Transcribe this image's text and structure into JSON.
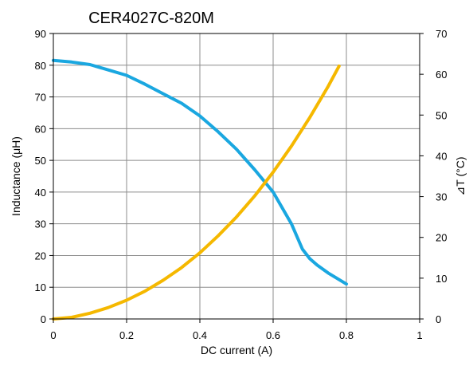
{
  "chart_data": {
    "type": "line",
    "title": "CER4027C-820M",
    "xlabel": "DC current (A)",
    "ylabel": "Inductance (μH)",
    "y2label": "⊿T (°C)",
    "xlim": [
      0,
      1
    ],
    "ylim": [
      0,
      90
    ],
    "y2lim": [
      0,
      70
    ],
    "xticks": [
      "0",
      "0.2",
      "0.4",
      "0.6",
      "0.8",
      "1"
    ],
    "yticks": [
      "0",
      "10",
      "20",
      "30",
      "40",
      "50",
      "60",
      "70",
      "80",
      "90"
    ],
    "y2ticks": [
      "0",
      "10",
      "20",
      "30",
      "40",
      "50",
      "60",
      "70"
    ],
    "grid": true,
    "series": [
      {
        "axis": "left",
        "color": "#1aa7e0",
        "x": [
          0,
          0.05,
          0.1,
          0.15,
          0.2,
          0.25,
          0.3,
          0.35,
          0.4,
          0.45,
          0.5,
          0.55,
          0.6,
          0.65,
          0.68,
          0.7,
          0.72,
          0.75,
          0.8
        ],
        "y": [
          81.5,
          81,
          80.2,
          78.5,
          76.8,
          74,
          71,
          68,
          64,
          59,
          53.5,
          47,
          40,
          30,
          22,
          19,
          17,
          14.5,
          11
        ]
      },
      {
        "axis": "right",
        "color": "#f5b800",
        "x": [
          0,
          0.05,
          0.1,
          0.15,
          0.2,
          0.25,
          0.3,
          0.35,
          0.4,
          0.45,
          0.5,
          0.55,
          0.6,
          0.65,
          0.7,
          0.75,
          0.78
        ],
        "y": [
          0,
          0.4,
          1.4,
          2.8,
          4.6,
          6.8,
          9.5,
          12.6,
          16.2,
          20.4,
          25,
          30.2,
          36,
          42.4,
          49.4,
          57,
          62
        ]
      }
    ]
  }
}
